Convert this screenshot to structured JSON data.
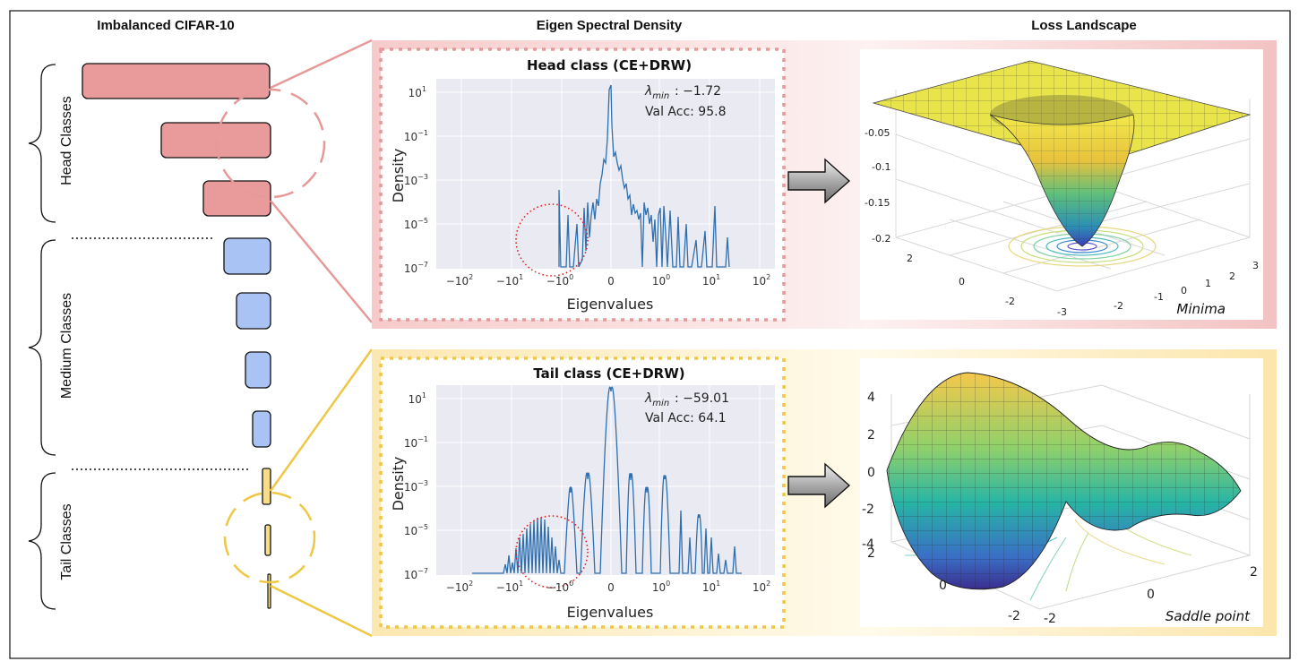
{
  "titles": {
    "left": "Imbalanced CIFAR-10",
    "middle": "Eigen Spectral Density",
    "right": "Loss Landscape"
  },
  "groups": {
    "head": "Head Classes",
    "medium": "Medium Classes",
    "tail": "Tail Classes"
  },
  "colors": {
    "head_fill": "#e99a9a",
    "medium_fill": "#a9c3f5",
    "tail_fill": "#f7dc8c",
    "head_panel": "#f6caca",
    "tail_panel": "#fbeab7",
    "head_accent": "#e59a9a",
    "tail_accent": "#eec744",
    "plot_bg": "#eaeaf2",
    "line": "#2e6fb0"
  },
  "panels": {
    "head": {
      "title": "Head class (CE+DRW)",
      "lambda_label": ": −1.72",
      "val_acc": "Val Acc: 95.8",
      "landscape_label": "Minima"
    },
    "tail": {
      "title": "Tail class (CE+DRW)",
      "lambda_label": ": −59.01",
      "val_acc": "Val Acc: 64.1",
      "landscape_label": "Saddle point"
    }
  },
  "axes": {
    "xlabel": "Eigenvalues",
    "ylabel": "Density",
    "y_ticks": [
      "10",
      "10",
      "10",
      "10",
      "10"
    ],
    "y_exps": [
      "1",
      "−1",
      "−3",
      "−5",
      "−7"
    ],
    "x_ticks": [
      "−10",
      "−10",
      "−10",
      "0",
      "10",
      "10",
      "10"
    ],
    "x_exps": [
      "2",
      "1",
      "0",
      "",
      "0",
      "1",
      "2"
    ],
    "x_tick_signs": [
      "−",
      "−",
      "−",
      "",
      "",
      "",
      ""
    ]
  },
  "landscape_head": {
    "z_ticks": [
      "-0.05",
      "-0.1",
      "-0.15",
      "-0.2"
    ],
    "x_ticks": [
      "2",
      "0",
      "-2"
    ],
    "y_ticks": [
      "3",
      "2",
      "1",
      "0",
      "-1",
      "-2",
      "-3"
    ]
  },
  "landscape_tail": {
    "z_ticks": [
      "4",
      "2",
      "0",
      "-2",
      "-4"
    ],
    "x_ticks": [
      "2",
      "0",
      "-2"
    ],
    "y_ticks": [
      "2",
      "0",
      "-2"
    ]
  },
  "chart_data": [
    {
      "type": "line",
      "title": "Head class (CE+DRW)",
      "xlabel": "Eigenvalues",
      "ylabel": "Density",
      "x_scale": "symlog",
      "y_scale": "log",
      "ylim": [
        1e-07,
        100
      ],
      "annotations": [
        "λmin: −1.72",
        "Val Acc: 95.8"
      ],
      "x": [
        -0.3,
        0,
        0.3,
        1,
        3,
        10,
        20
      ],
      "y": [
        1e-05,
        20,
        0.001,
        3e-05,
        1e-05,
        1e-06,
        1e-07
      ]
    },
    {
      "type": "line",
      "title": "Tail class (CE+DRW)",
      "xlabel": "Eigenvalues",
      "ylabel": "Density",
      "x_scale": "symlog",
      "y_scale": "log",
      "ylim": [
        1e-07,
        100
      ],
      "annotations": [
        "λmin: −59.01",
        "Val Acc: 64.1"
      ],
      "x": [
        -10,
        -3,
        -1,
        -0.4,
        0,
        0.4,
        1.5,
        5,
        10,
        20
      ],
      "y": [
        3e-06,
        3e-05,
        3e-05,
        0.003,
        15,
        0.003,
        0.003,
        0.0003,
        3e-05,
        1e-06
      ]
    }
  ]
}
